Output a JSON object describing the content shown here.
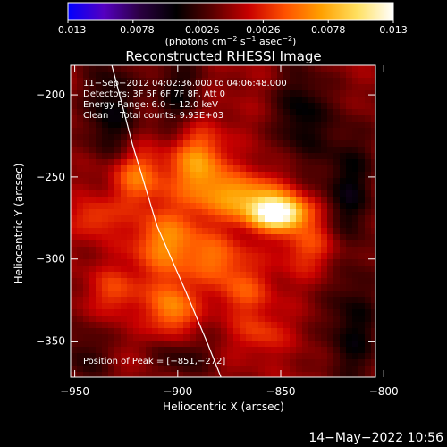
{
  "chart_data": {
    "type": "heatmap",
    "title": "Reconstructed RHESSI Image",
    "xlabel": "Heliocentric X (arcsec)",
    "ylabel": "Heliocentric Y (arcsec)",
    "xlim": [
      -952,
      -804
    ],
    "ylim": [
      -372,
      -182
    ],
    "x_ticks": [
      -950,
      -900,
      -850,
      -800
    ],
    "y_ticks": [
      -200,
      -250,
      -300,
      -350
    ],
    "x_tick_labels": [
      "−950",
      "−900",
      "−850",
      "−800"
    ],
    "y_tick_labels": [
      "−200",
      "−250",
      "−300",
      "−350"
    ],
    "grid": false,
    "colorbar": {
      "range": [
        -0.013,
        0.013
      ],
      "ticks": [
        -0.013,
        -0.0078,
        -0.0026,
        0.0026,
        0.0078,
        0.013
      ],
      "tick_labels": [
        "−0.013",
        "−0.0078",
        "−0.0026",
        "0.0026",
        "0.0078",
        "0.013"
      ],
      "unit_label": {
        "pre": "(photons cm",
        "sup1": "−2",
        "mid1": " s",
        "sup2": "−1",
        "mid2": " asec",
        "sup3": "−2",
        "post": ")"
      },
      "colormap": [
        "#0000ff",
        "#5500c0",
        "#2a0040",
        "#000000",
        "#5a0000",
        "#c80000",
        "#ff5000",
        "#ffa000",
        "#ffe060",
        "#ffffff"
      ]
    },
    "annotations": [
      "11−Sep−2012 04:02:36.000 to 04:06:48.000",
      "Detectors: 3F 5F 6F 7F 8F, Att 0",
      "Energy Range: 6.0 − 12.0 keV",
      "Clean    Total counts: 9.93E+03"
    ],
    "peak": {
      "label": "Position of Peak = [−851,−272]",
      "x": -851,
      "y": -272,
      "value": 0.013
    },
    "limb_curve": [
      [
        -932,
        -182
      ],
      [
        -922,
        -230
      ],
      [
        -910,
        -280
      ],
      [
        -896,
        -320
      ],
      [
        -886,
        -350
      ],
      [
        -879,
        -372
      ]
    ],
    "emission_sources": [
      {
        "x": -851,
        "y": -272,
        "sx": 10,
        "sy": 7,
        "amp": 1.0
      },
      {
        "x": -868,
        "y": -262,
        "sx": 14,
        "sy": 10,
        "amp": 0.55
      },
      {
        "x": -890,
        "y": -242,
        "sx": 9,
        "sy": 16,
        "amp": 0.55
      },
      {
        "x": -920,
        "y": -250,
        "sx": 10,
        "sy": 12,
        "amp": 0.45
      },
      {
        "x": -905,
        "y": -290,
        "sx": 12,
        "sy": 14,
        "amp": 0.5
      },
      {
        "x": -903,
        "y": -330,
        "sx": 8,
        "sy": 12,
        "amp": 0.5
      },
      {
        "x": -880,
        "y": -300,
        "sx": 10,
        "sy": 10,
        "amp": 0.35
      },
      {
        "x": -868,
        "y": -320,
        "sx": 10,
        "sy": 10,
        "amp": 0.3
      },
      {
        "x": -835,
        "y": -292,
        "sx": 12,
        "sy": 12,
        "amp": 0.3
      },
      {
        "x": -860,
        "y": -345,
        "sx": 9,
        "sy": 9,
        "amp": 0.25
      },
      {
        "x": -930,
        "y": -320,
        "sx": 8,
        "sy": 10,
        "amp": 0.3
      },
      {
        "x": -940,
        "y": -275,
        "sx": 8,
        "sy": 8,
        "amp": 0.3
      }
    ],
    "negative_sources": [
      {
        "x": -933,
        "y": -210,
        "sx": 9,
        "sy": 26,
        "amp": 0.35
      },
      {
        "x": -900,
        "y": -200,
        "sx": 9,
        "sy": 18,
        "amp": 0.3
      },
      {
        "x": -840,
        "y": -212,
        "sx": 9,
        "sy": 22,
        "amp": 0.35
      },
      {
        "x": -817,
        "y": -258,
        "sx": 9,
        "sy": 30,
        "amp": 0.35
      },
      {
        "x": -815,
        "y": -345,
        "sx": 10,
        "sy": 26,
        "amp": 0.32
      },
      {
        "x": -898,
        "y": -360,
        "sx": 10,
        "sy": 10,
        "amp": 0.25
      },
      {
        "x": -945,
        "y": -360,
        "sx": 8,
        "sy": 14,
        "amp": 0.25
      }
    ]
  },
  "footer": {
    "timestamp": "14−May−2022 10:56"
  }
}
